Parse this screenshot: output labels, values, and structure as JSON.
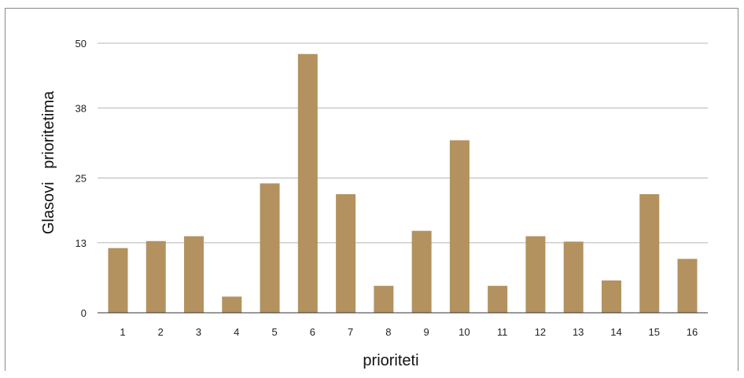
{
  "chart_data": {
    "type": "bar",
    "categories": [
      "1",
      "2",
      "3",
      "4",
      "5",
      "6",
      "7",
      "8",
      "9",
      "10",
      "11",
      "12",
      "13",
      "14",
      "15",
      "16"
    ],
    "values": [
      12,
      13.3,
      14.2,
      3,
      24,
      48,
      22,
      5,
      15.2,
      32,
      5,
      14.2,
      13.2,
      6,
      22,
      10
    ],
    "xlabel": "prioriteti",
    "ylabel": "Glasovi   prioritetima",
    "yticks": [
      "0",
      "13",
      "25",
      "38",
      "50"
    ],
    "ylim": [
      0,
      50
    ],
    "bar_color": "#b39260",
    "grid": true
  }
}
